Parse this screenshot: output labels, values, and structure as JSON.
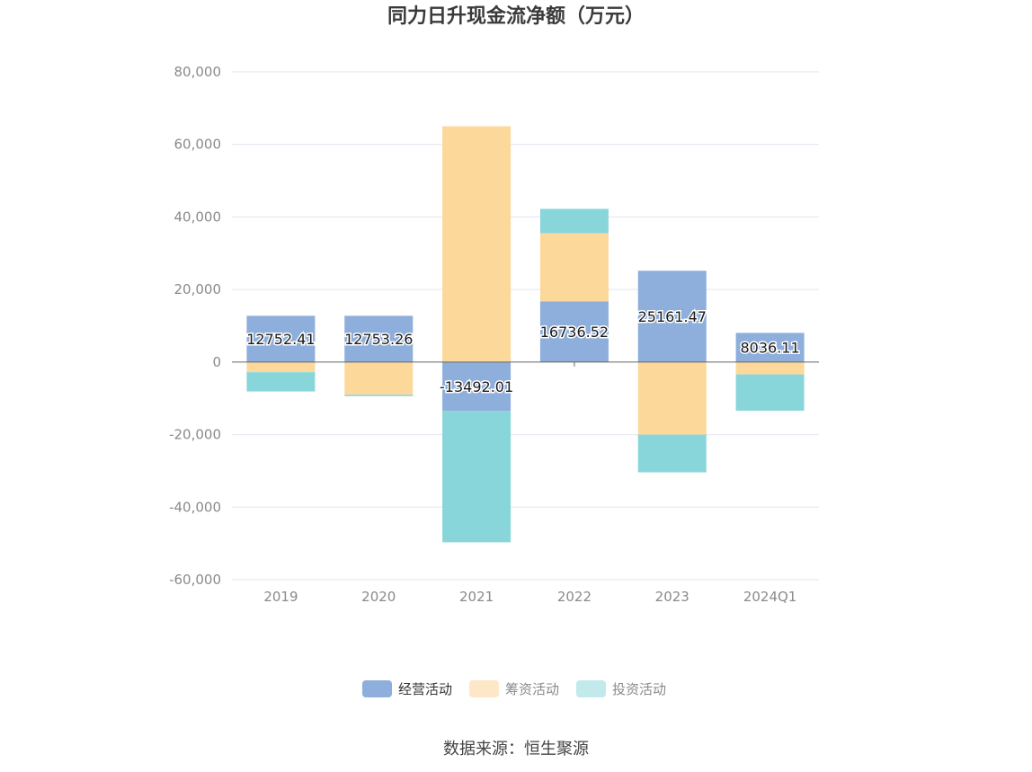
{
  "chart_data": {
    "type": "bar",
    "stacked": true,
    "title": "同力日升现金流净额（万元）",
    "categories": [
      "2019",
      "2020",
      "2021",
      "2022",
      "2023",
      "2024Q1"
    ],
    "ylim": [
      -60000,
      80000
    ],
    "yticks": [
      80000,
      60000,
      40000,
      20000,
      0,
      -20000,
      -40000,
      -60000
    ],
    "ytick_labels": [
      "80,000",
      "60,000",
      "40,000",
      "20,000",
      "0",
      "-20,000",
      "-40,000",
      "-60,000"
    ],
    "series": [
      {
        "name": "经营活动",
        "color": "#8eaedb",
        "values": [
          12752.41,
          12753.26,
          -13492.01,
          16736.52,
          25161.47,
          8036.11
        ]
      },
      {
        "name": "筹资活动",
        "color": "#fdd89b",
        "values": [
          -2800,
          -9000,
          65000,
          18800,
          -20000,
          -3400
        ]
      },
      {
        "name": "投资活动",
        "color": "#88d6da",
        "values": [
          -5300,
          -400,
          -36200,
          6700,
          -10400,
          -10000
        ]
      }
    ],
    "data_labels": [
      "12752.41",
      "12753.26",
      "-13492.01",
      "16736.52",
      "25161.47",
      "8036.11"
    ],
    "legend_position": "bottom",
    "grid": true
  },
  "legend_items": [
    {
      "name": "经营活动",
      "swatch": "#8eaedb",
      "text_color": "#333333"
    },
    {
      "name": "筹资活动",
      "swatch": "#fde7c6",
      "text_color": "#8a8a8a"
    },
    {
      "name": "投资活动",
      "swatch": "#c2e9eb",
      "text_color": "#8a8a8a"
    }
  ],
  "source": "数据来源：恒生聚源"
}
